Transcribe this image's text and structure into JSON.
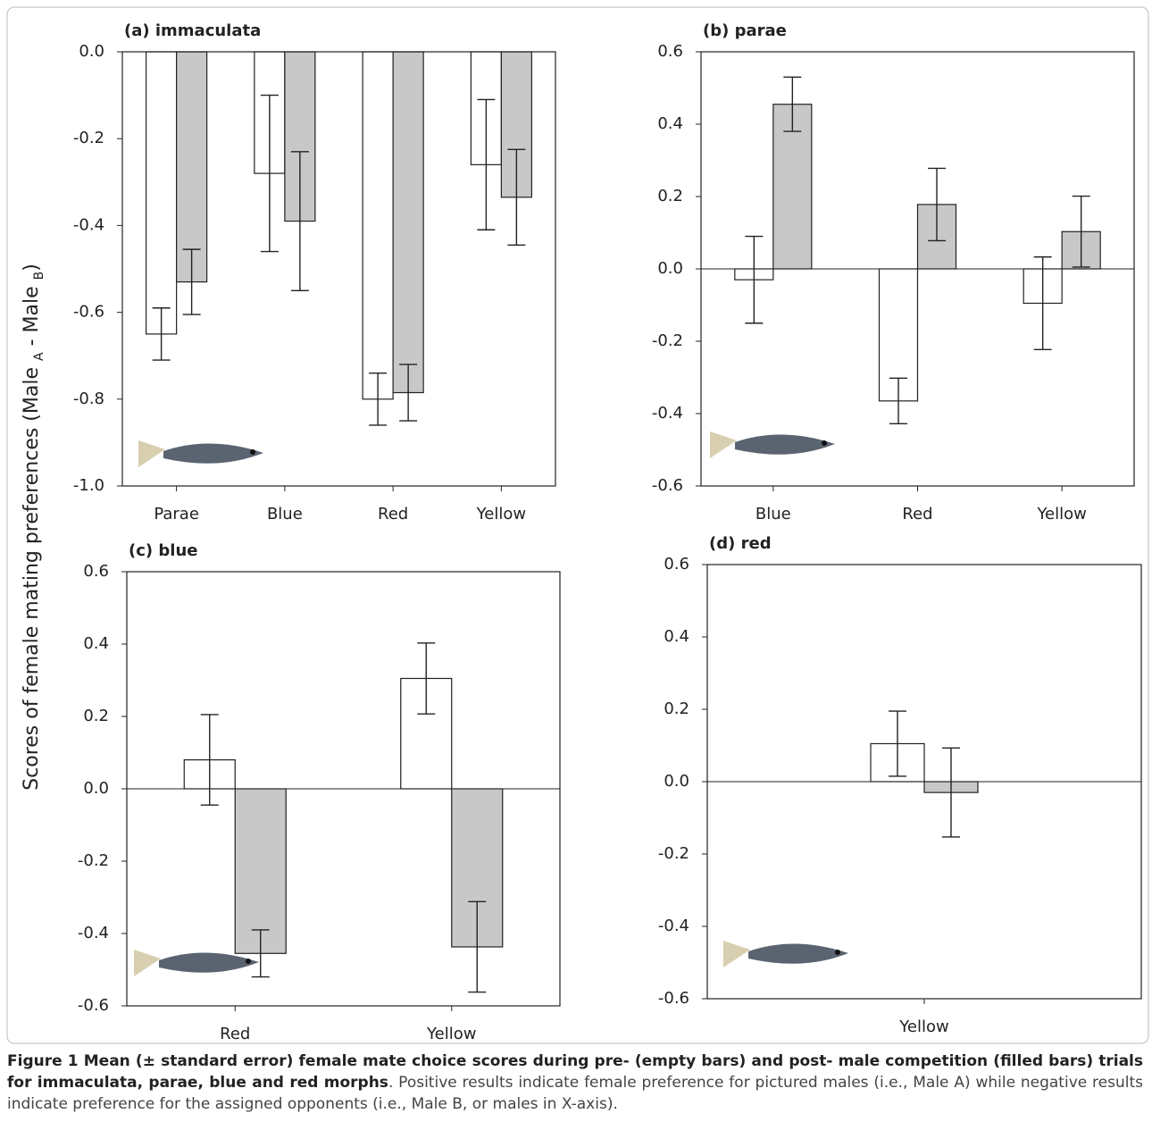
{
  "y_label": [
    "Scores of female mating preferences (Male ",
    "A",
    " - Male ",
    "B",
    ")"
  ],
  "chart_data": [
    {
      "type": "bar",
      "title": "(a) immaculata",
      "categories": [
        "Parae",
        "Blue",
        "Red",
        "Yellow"
      ],
      "series": [
        {
          "color": "#ffffff",
          "values": [
            -0.65,
            -0.28,
            -0.8,
            -0.26
          ],
          "errors": [
            0.06,
            0.18,
            0.06,
            0.15
          ]
        },
        {
          "color": "#c8c8c8",
          "values": [
            -0.53,
            -0.39,
            -0.785,
            -0.335
          ],
          "errors": [
            0.075,
            0.16,
            0.065,
            0.11
          ]
        }
      ],
      "ylim": [
        -1,
        0
      ],
      "yticks": [
        {
          "value": 0,
          "label": "0.0"
        },
        -0.2,
        -0.4,
        -0.6,
        -0.8,
        {
          "value": -1,
          "label": "-1.0"
        }
      ]
    },
    {
      "type": "bar",
      "title": "(b) parae",
      "categories": [
        "Blue",
        "Red",
        "Yellow"
      ],
      "series": [
        {
          "color": "#ffffff",
          "values": [
            -0.03,
            -0.365,
            -0.095
          ],
          "errors": [
            0.12,
            0.063,
            0.128
          ]
        },
        {
          "color": "#c8c8c8",
          "values": [
            0.455,
            0.178,
            0.103
          ],
          "errors": [
            0.075,
            0.1,
            0.098
          ]
        }
      ],
      "ylim": [
        -0.6,
        0.6
      ],
      "yticks": [
        0.6,
        0.4,
        0.2,
        {
          "value": 0,
          "label": "0.0"
        },
        -0.2,
        -0.4,
        -0.6
      ]
    },
    {
      "type": "bar",
      "title": "(c) blue",
      "categories": [
        "Red",
        "Yellow"
      ],
      "series": [
        {
          "color": "#ffffff",
          "values": [
            0.08,
            0.305
          ],
          "errors": [
            0.125,
            0.098
          ]
        },
        {
          "color": "#c8c8c8",
          "values": [
            -0.455,
            -0.437
          ],
          "errors": [
            0.065,
            0.125
          ]
        }
      ],
      "ylim": [
        -0.6,
        0.6
      ],
      "yticks": [
        0.6,
        0.4,
        0.2,
        {
          "value": 0,
          "label": "0.0"
        },
        -0.2,
        -0.4,
        -0.6
      ]
    },
    {
      "type": "bar",
      "title": "(d) red",
      "categories": [
        "Yellow"
      ],
      "series": [
        {
          "color": "#ffffff",
          "values": [
            0.105
          ],
          "errors": [
            0.09
          ]
        },
        {
          "color": "#c8c8c8",
          "values": [
            -0.03
          ],
          "errors": [
            0.123
          ]
        }
      ],
      "ylim": [
        -0.6,
        0.6
      ],
      "yticks": [
        0.6,
        0.4,
        0.2,
        {
          "value": 0,
          "label": "0.0"
        },
        -0.2,
        -0.4,
        -0.6
      ]
    }
  ],
  "caption": {
    "bold": "Figure 1 Mean (± standard error) female mate choice scores during pre- (empty bars) and post- male competition (filled bars) trials for immaculata, parae, blue and red morphs",
    "text": ". Positive results indicate female preference for pictured males (i.e., Male A) while negative results indicate preference for the assigned opponents (i.e., Male B, or males in X-axis)."
  }
}
